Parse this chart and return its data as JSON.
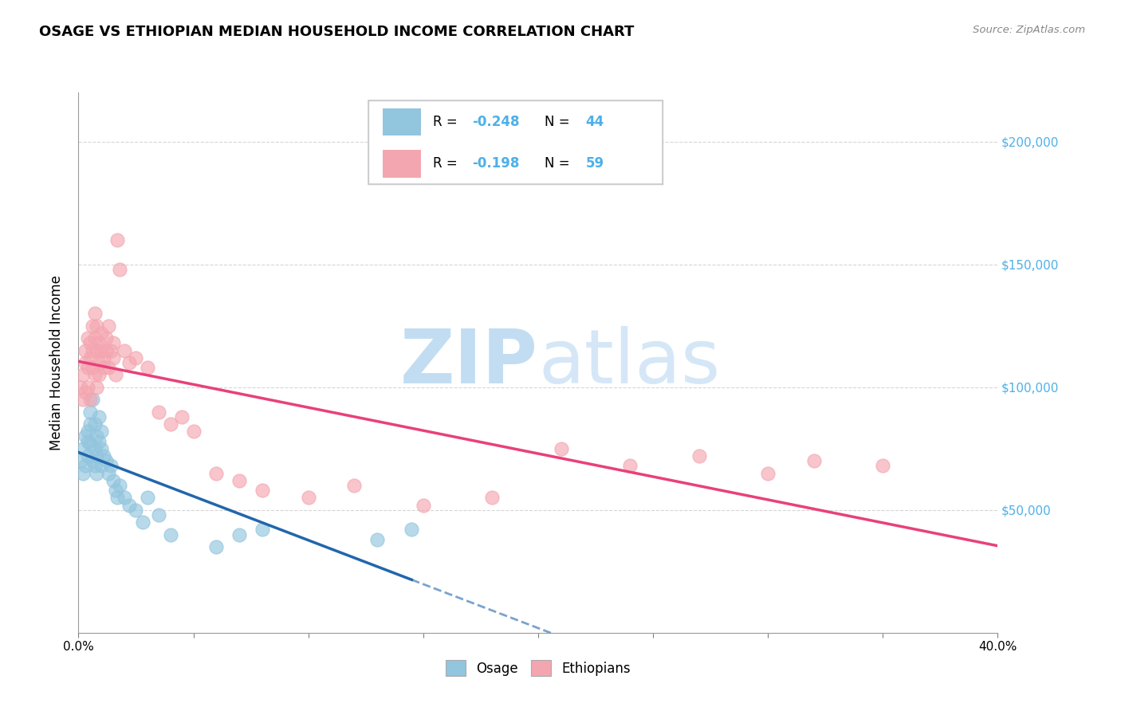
{
  "title": "OSAGE VS ETHIOPIAN MEDIAN HOUSEHOLD INCOME CORRELATION CHART",
  "source": "Source: ZipAtlas.com",
  "ylabel": "Median Household Income",
  "background_color": "#ffffff",
  "watermark_zip": "ZIP",
  "watermark_atlas": "atlas",
  "legend_r1": "-0.248",
  "legend_n1": "44",
  "legend_r2": "-0.198",
  "legend_n2": "59",
  "osage_color": "#92c5de",
  "ethiopian_color": "#f4a6b0",
  "osage_line_color": "#2166ac",
  "ethiopian_line_color": "#e8417a",
  "grid_color": "#cccccc",
  "right_axis_color": "#4db0e8",
  "ytick_labels": [
    "$50,000",
    "$100,000",
    "$150,000",
    "$200,000"
  ],
  "ytick_values": [
    50000,
    100000,
    150000,
    200000
  ],
  "ylim": [
    0,
    220000
  ],
  "xlim": [
    0.0,
    0.4
  ],
  "osage_x": [
    0.001,
    0.002,
    0.002,
    0.003,
    0.003,
    0.004,
    0.004,
    0.004,
    0.005,
    0.005,
    0.005,
    0.006,
    0.006,
    0.007,
    0.007,
    0.007,
    0.008,
    0.008,
    0.008,
    0.009,
    0.009,
    0.01,
    0.01,
    0.01,
    0.011,
    0.012,
    0.013,
    0.014,
    0.015,
    0.016,
    0.017,
    0.018,
    0.02,
    0.022,
    0.025,
    0.028,
    0.03,
    0.035,
    0.04,
    0.06,
    0.07,
    0.08,
    0.13,
    0.145
  ],
  "osage_y": [
    70000,
    75000,
    65000,
    68000,
    80000,
    78000,
    72000,
    82000,
    85000,
    77000,
    90000,
    95000,
    70000,
    75000,
    68000,
    85000,
    72000,
    80000,
    65000,
    78000,
    88000,
    68000,
    75000,
    82000,
    72000,
    70000,
    65000,
    68000,
    62000,
    58000,
    55000,
    60000,
    55000,
    52000,
    50000,
    45000,
    55000,
    48000,
    40000,
    35000,
    40000,
    42000,
    38000,
    42000
  ],
  "ethiopian_x": [
    0.001,
    0.002,
    0.002,
    0.003,
    0.003,
    0.003,
    0.004,
    0.004,
    0.004,
    0.005,
    0.005,
    0.005,
    0.006,
    0.006,
    0.006,
    0.007,
    0.007,
    0.007,
    0.008,
    0.008,
    0.008,
    0.009,
    0.009,
    0.009,
    0.01,
    0.01,
    0.011,
    0.011,
    0.012,
    0.012,
    0.013,
    0.013,
    0.014,
    0.015,
    0.015,
    0.016,
    0.017,
    0.018,
    0.02,
    0.022,
    0.025,
    0.03,
    0.035,
    0.04,
    0.045,
    0.05,
    0.06,
    0.07,
    0.08,
    0.1,
    0.12,
    0.15,
    0.18,
    0.21,
    0.24,
    0.27,
    0.3,
    0.32,
    0.35
  ],
  "ethiopian_y": [
    100000,
    95000,
    105000,
    110000,
    98000,
    115000,
    108000,
    120000,
    100000,
    112000,
    95000,
    118000,
    125000,
    108000,
    115000,
    120000,
    105000,
    130000,
    115000,
    125000,
    100000,
    110000,
    118000,
    105000,
    115000,
    122000,
    112000,
    108000,
    120000,
    115000,
    125000,
    108000,
    115000,
    112000,
    118000,
    105000,
    160000,
    148000,
    115000,
    110000,
    112000,
    108000,
    90000,
    85000,
    88000,
    82000,
    65000,
    62000,
    58000,
    55000,
    60000,
    52000,
    55000,
    75000,
    68000,
    72000,
    65000,
    70000,
    68000
  ]
}
